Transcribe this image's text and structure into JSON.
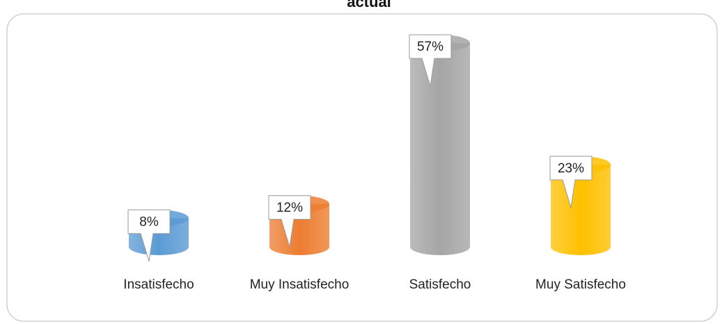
{
  "chart_data": {
    "type": "bar",
    "title": "actual",
    "categories": [
      "Insatisfecho",
      "Muy Insatisfecho",
      "Satisfecho",
      "Muy Satisfecho"
    ],
    "values": [
      8,
      12,
      57,
      23
    ],
    "value_labels": [
      "8%",
      "12%",
      "57%",
      "23%"
    ],
    "colors": [
      "#5b9bd5",
      "#ed7d31",
      "#a5a5a5",
      "#ffc000"
    ]
  }
}
